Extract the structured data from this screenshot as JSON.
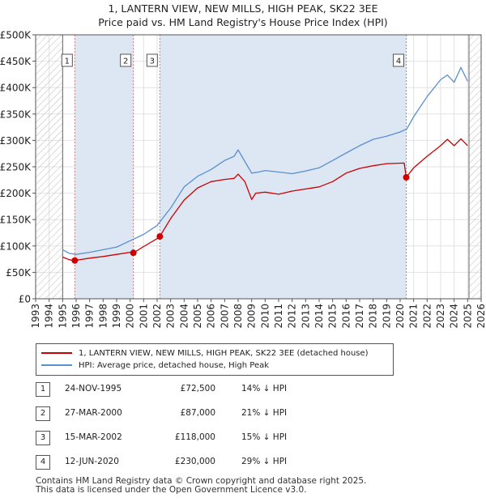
{
  "title_line1": "1, LANTERN VIEW, NEW MILLS, HIGH PEAK, SK22 3EE",
  "title_line2": "Price paid vs. HM Land Registry's House Price Index (HPI)",
  "colors": {
    "price": "#cc0000",
    "hpi": "#5a8fd0",
    "shade": "#dde6f3",
    "hatch": "#aaaaaa",
    "marker_line": "#dd7777"
  },
  "legend": {
    "price_label": "1, LANTERN VIEW, NEW MILLS, HIGH PEAK, SK22 3EE (detached house)",
    "hpi_label": "HPI: Average price, detached house, High Peak"
  },
  "transactions": [
    {
      "num": "1",
      "date": "24-NOV-1995",
      "price": "£72,500",
      "hpi_diff": "14% ↓ HPI"
    },
    {
      "num": "2",
      "date": "27-MAR-2000",
      "price": "£87,000",
      "hpi_diff": "21% ↓ HPI"
    },
    {
      "num": "3",
      "date": "15-MAR-2002",
      "price": "£118,000",
      "hpi_diff": "15% ↓ HPI"
    },
    {
      "num": "4",
      "date": "12-JUN-2020",
      "price": "£230,000",
      "hpi_diff": "29% ↓ HPI"
    }
  ],
  "footer": {
    "line1": "Contains HM Land Registry data © Crown copyright and database right 2025.",
    "line2": "This data is licensed under the Open Government Licence v3.0."
  },
  "chart_data": {
    "type": "line",
    "xlim": [
      1993,
      2026
    ],
    "ylim": [
      0,
      500000
    ],
    "x_ticks": [
      1993,
      1994,
      1995,
      1996,
      1997,
      1998,
      1999,
      2000,
      2001,
      2002,
      2003,
      2004,
      2005,
      2006,
      2007,
      2008,
      2009,
      2010,
      2011,
      2012,
      2013,
      2014,
      2015,
      2016,
      2017,
      2018,
      2019,
      2020,
      2021,
      2022,
      2023,
      2024,
      2025,
      2026
    ],
    "y_ticks": [
      0,
      50000,
      100000,
      150000,
      200000,
      250000,
      300000,
      350000,
      400000,
      450000,
      500000
    ],
    "y_tick_labels": [
      "£0",
      "£50K",
      "£100K",
      "£150K",
      "£200K",
      "£250K",
      "£300K",
      "£350K",
      "£400K",
      "£450K",
      "£500K"
    ],
    "hatched_ranges": [
      [
        1993,
        1995.0
      ],
      [
        2025.1,
        2026
      ]
    ],
    "shaded_ranges": [
      [
        1995.9,
        2000.24
      ],
      [
        2002.2,
        2020.45
      ]
    ],
    "sales": [
      {
        "label": "1",
        "x": 1995.9,
        "y": 72500
      },
      {
        "label": "2",
        "x": 2000.24,
        "y": 87000
      },
      {
        "label": "3",
        "x": 2002.2,
        "y": 118000
      },
      {
        "label": "4",
        "x": 2020.45,
        "y": 230000
      }
    ],
    "series": [
      {
        "name": "1, LANTERN VIEW, NEW MILLS, HIGH PEAK, SK22 3EE (detached house)",
        "x": [
          1995.0,
          1995.5,
          1995.9,
          1996.5,
          1997,
          1998,
          1999,
          2000.0,
          2000.24,
          2001,
          2002.0,
          2002.2,
          2003,
          2004,
          2005,
          2006,
          2007,
          2007.7,
          2008.0,
          2008.5,
          2009.0,
          2009.3,
          2010,
          2011,
          2012,
          2013,
          2014,
          2015,
          2016,
          2017,
          2018,
          2019,
          2020.3,
          2020.45,
          2021,
          2022,
          2023,
          2023.5,
          2024,
          2024.5,
          2025.0
        ],
        "values": [
          79000,
          74000,
          72500,
          75000,
          77000,
          80000,
          84000,
          88000,
          87000,
          99000,
          114000,
          118000,
          152000,
          187000,
          210000,
          222000,
          226000,
          228000,
          236000,
          222000,
          188000,
          200000,
          202000,
          198000,
          204000,
          208000,
          212000,
          222000,
          238000,
          247000,
          252000,
          256000,
          257000,
          230000,
          248000,
          270000,
          290000,
          302000,
          290000,
          303000,
          290000
        ]
      },
      {
        "name": "HPI: Average price, detached house, High Peak",
        "x": [
          1995.0,
          1995.5,
          1996,
          1997,
          1998,
          1999,
          2000,
          2001,
          2002,
          2003,
          2004,
          2005,
          2006,
          2007,
          2007.7,
          2008.0,
          2008.5,
          2009.0,
          2009.5,
          2010,
          2011,
          2012,
          2013,
          2014,
          2015,
          2016,
          2017,
          2018,
          2019,
          2020,
          2020.5,
          2021,
          2022,
          2023,
          2023.5,
          2024,
          2024.5,
          2025.0
        ],
        "values": [
          93000,
          86000,
          84000,
          88000,
          93000,
          98000,
          110000,
          122000,
          139000,
          172000,
          212000,
          232000,
          245000,
          262000,
          270000,
          282000,
          260000,
          238000,
          240000,
          243000,
          240000,
          237000,
          242000,
          248000,
          262000,
          276000,
          290000,
          302000,
          308000,
          316000,
          322000,
          345000,
          383000,
          415000,
          424000,
          410000,
          438000,
          412000
        ]
      }
    ]
  }
}
